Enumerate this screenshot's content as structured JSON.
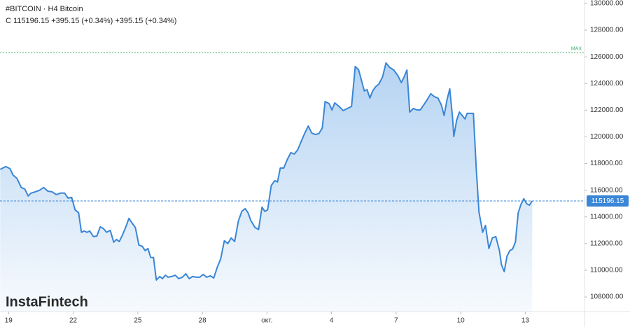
{
  "header": {
    "symbol": "#BITCOIN · H4 Bitcoin",
    "quote": "C 115196.15 +395.15 (+0.34%) +395.15 (+0.34%)"
  },
  "logo": "InstaFintech",
  "chart_data": {
    "type": "area",
    "line_color": "#3a86d6",
    "fill_color": "#5b9ee3",
    "xlim": [
      18.6,
      45.75
    ],
    "ylim": [
      106900,
      130260
    ],
    "grid": false,
    "xticks": [
      19,
      22,
      25,
      28,
      {
        "value": 31,
        "label": "окт."
      },
      {
        "value": 34,
        "label": "4"
      },
      {
        "value": 37,
        "label": "7"
      },
      {
        "value": 40,
        "label": "10"
      },
      {
        "value": 43,
        "label": "13"
      }
    ],
    "yticks": [
      {
        "value": 108000,
        "label": "108000.00"
      },
      {
        "value": 110000,
        "label": "110000.00"
      },
      {
        "value": 112000,
        "label": "112000.00"
      },
      {
        "value": 114000,
        "label": "114000.00"
      },
      {
        "value": 116000,
        "label": "116000.00"
      },
      {
        "value": 118000,
        "label": "118000.00"
      },
      {
        "value": 120000,
        "label": "120000.00"
      },
      {
        "value": 122000,
        "label": "122000.00"
      },
      {
        "value": 124000,
        "label": "124000.00"
      },
      {
        "value": 126000,
        "label": "126000.00"
      },
      {
        "value": 128000,
        "label": "128000.00"
      },
      {
        "value": 130000,
        "label": "130000.00"
      }
    ],
    "last_price": 115196.15,
    "max_line": {
      "label": "MAX",
      "value": 126300,
      "color": "#3fae6a"
    },
    "x": [
      18.61,
      18.87,
      19.07,
      19.2,
      19.39,
      19.59,
      19.75,
      19.91,
      20.04,
      20.24,
      20.43,
      20.63,
      20.82,
      21.02,
      21.21,
      21.41,
      21.6,
      21.76,
      21.93,
      22.09,
      22.25,
      22.38,
      22.51,
      22.64,
      22.77,
      22.94,
      23.1,
      23.26,
      23.42,
      23.55,
      23.72,
      23.88,
      24.01,
      24.14,
      24.3,
      24.46,
      24.59,
      24.72,
      24.89,
      25.05,
      25.21,
      25.34,
      25.47,
      25.6,
      25.73,
      25.86,
      26.02,
      26.15,
      26.28,
      26.41,
      26.58,
      26.74,
      26.9,
      27.07,
      27.23,
      27.39,
      27.55,
      27.72,
      27.88,
      28.04,
      28.2,
      28.37,
      28.53,
      28.69,
      28.85,
      29.02,
      29.18,
      29.34,
      29.5,
      29.67,
      29.83,
      29.99,
      30.12,
      30.25,
      30.45,
      30.61,
      30.77,
      30.9,
      31.03,
      31.2,
      31.36,
      31.49,
      31.62,
      31.78,
      31.94,
      32.11,
      32.27,
      32.43,
      32.59,
      32.76,
      32.92,
      33.08,
      33.24,
      33.41,
      33.57,
      33.7,
      33.89,
      34.02,
      34.15,
      34.35,
      34.54,
      34.74,
      34.93,
      35.1,
      35.26,
      35.39,
      35.52,
      35.65,
      35.78,
      35.91,
      36.04,
      36.2,
      36.37,
      36.53,
      36.69,
      36.89,
      37.08,
      37.24,
      37.37,
      37.5,
      37.63,
      37.8,
      37.96,
      38.12,
      38.28,
      38.45,
      38.61,
      38.77,
      38.94,
      39.1,
      39.23,
      39.36,
      39.49,
      39.62,
      39.68,
      39.81,
      39.94,
      40.07,
      40.2,
      40.3,
      40.46,
      40.59,
      40.72,
      40.85,
      41.02,
      41.15,
      41.31,
      41.47,
      41.63,
      41.8,
      41.89,
      42.02,
      42.15,
      42.28,
      42.41,
      42.54,
      42.67,
      42.8,
      42.93,
      43.06,
      43.19,
      43.32
    ],
    "values": [
      117560,
      117770,
      117610,
      117140,
      116880,
      116200,
      116090,
      115570,
      115780,
      115880,
      115990,
      116200,
      115930,
      115880,
      115670,
      115780,
      115780,
      115410,
      115460,
      114520,
      114310,
      112840,
      112940,
      112840,
      112940,
      112520,
      112570,
      113260,
      113100,
      112840,
      112990,
      112100,
      112310,
      112150,
      112680,
      113310,
      113890,
      113570,
      113200,
      111890,
      111790,
      111470,
      111630,
      110950,
      110950,
      109270,
      109530,
      109370,
      109630,
      109480,
      109530,
      109630,
      109370,
      109480,
      109740,
      109370,
      109530,
      109480,
      109480,
      109690,
      109480,
      109580,
      109420,
      110210,
      110840,
      112210,
      112000,
      112420,
      112150,
      113680,
      114410,
      114620,
      114310,
      113730,
      113200,
      113050,
      114730,
      114410,
      114520,
      116350,
      116720,
      116620,
      117660,
      117660,
      118290,
      118820,
      118710,
      119030,
      119660,
      120290,
      120810,
      120290,
      120180,
      120240,
      120660,
      122650,
      122490,
      122020,
      122550,
      122280,
      121970,
      122130,
      122280,
      125280,
      125010,
      124230,
      123440,
      123540,
      122910,
      123440,
      123750,
      123960,
      124490,
      125540,
      125220,
      125010,
      124590,
      124070,
      124490,
      125010,
      121860,
      122130,
      122020,
      122020,
      122390,
      122810,
      123230,
      123020,
      122910,
      122390,
      121600,
      122760,
      123600,
      121440,
      120030,
      121230,
      121860,
      121600,
      121340,
      121760,
      121760,
      121760,
      117660,
      114360,
      112840,
      113360,
      111630,
      112420,
      112520,
      111470,
      110420,
      109900,
      111050,
      111470,
      111580,
      112100,
      114310,
      114940,
      115360,
      114990,
      114880,
      115196.15
    ]
  }
}
